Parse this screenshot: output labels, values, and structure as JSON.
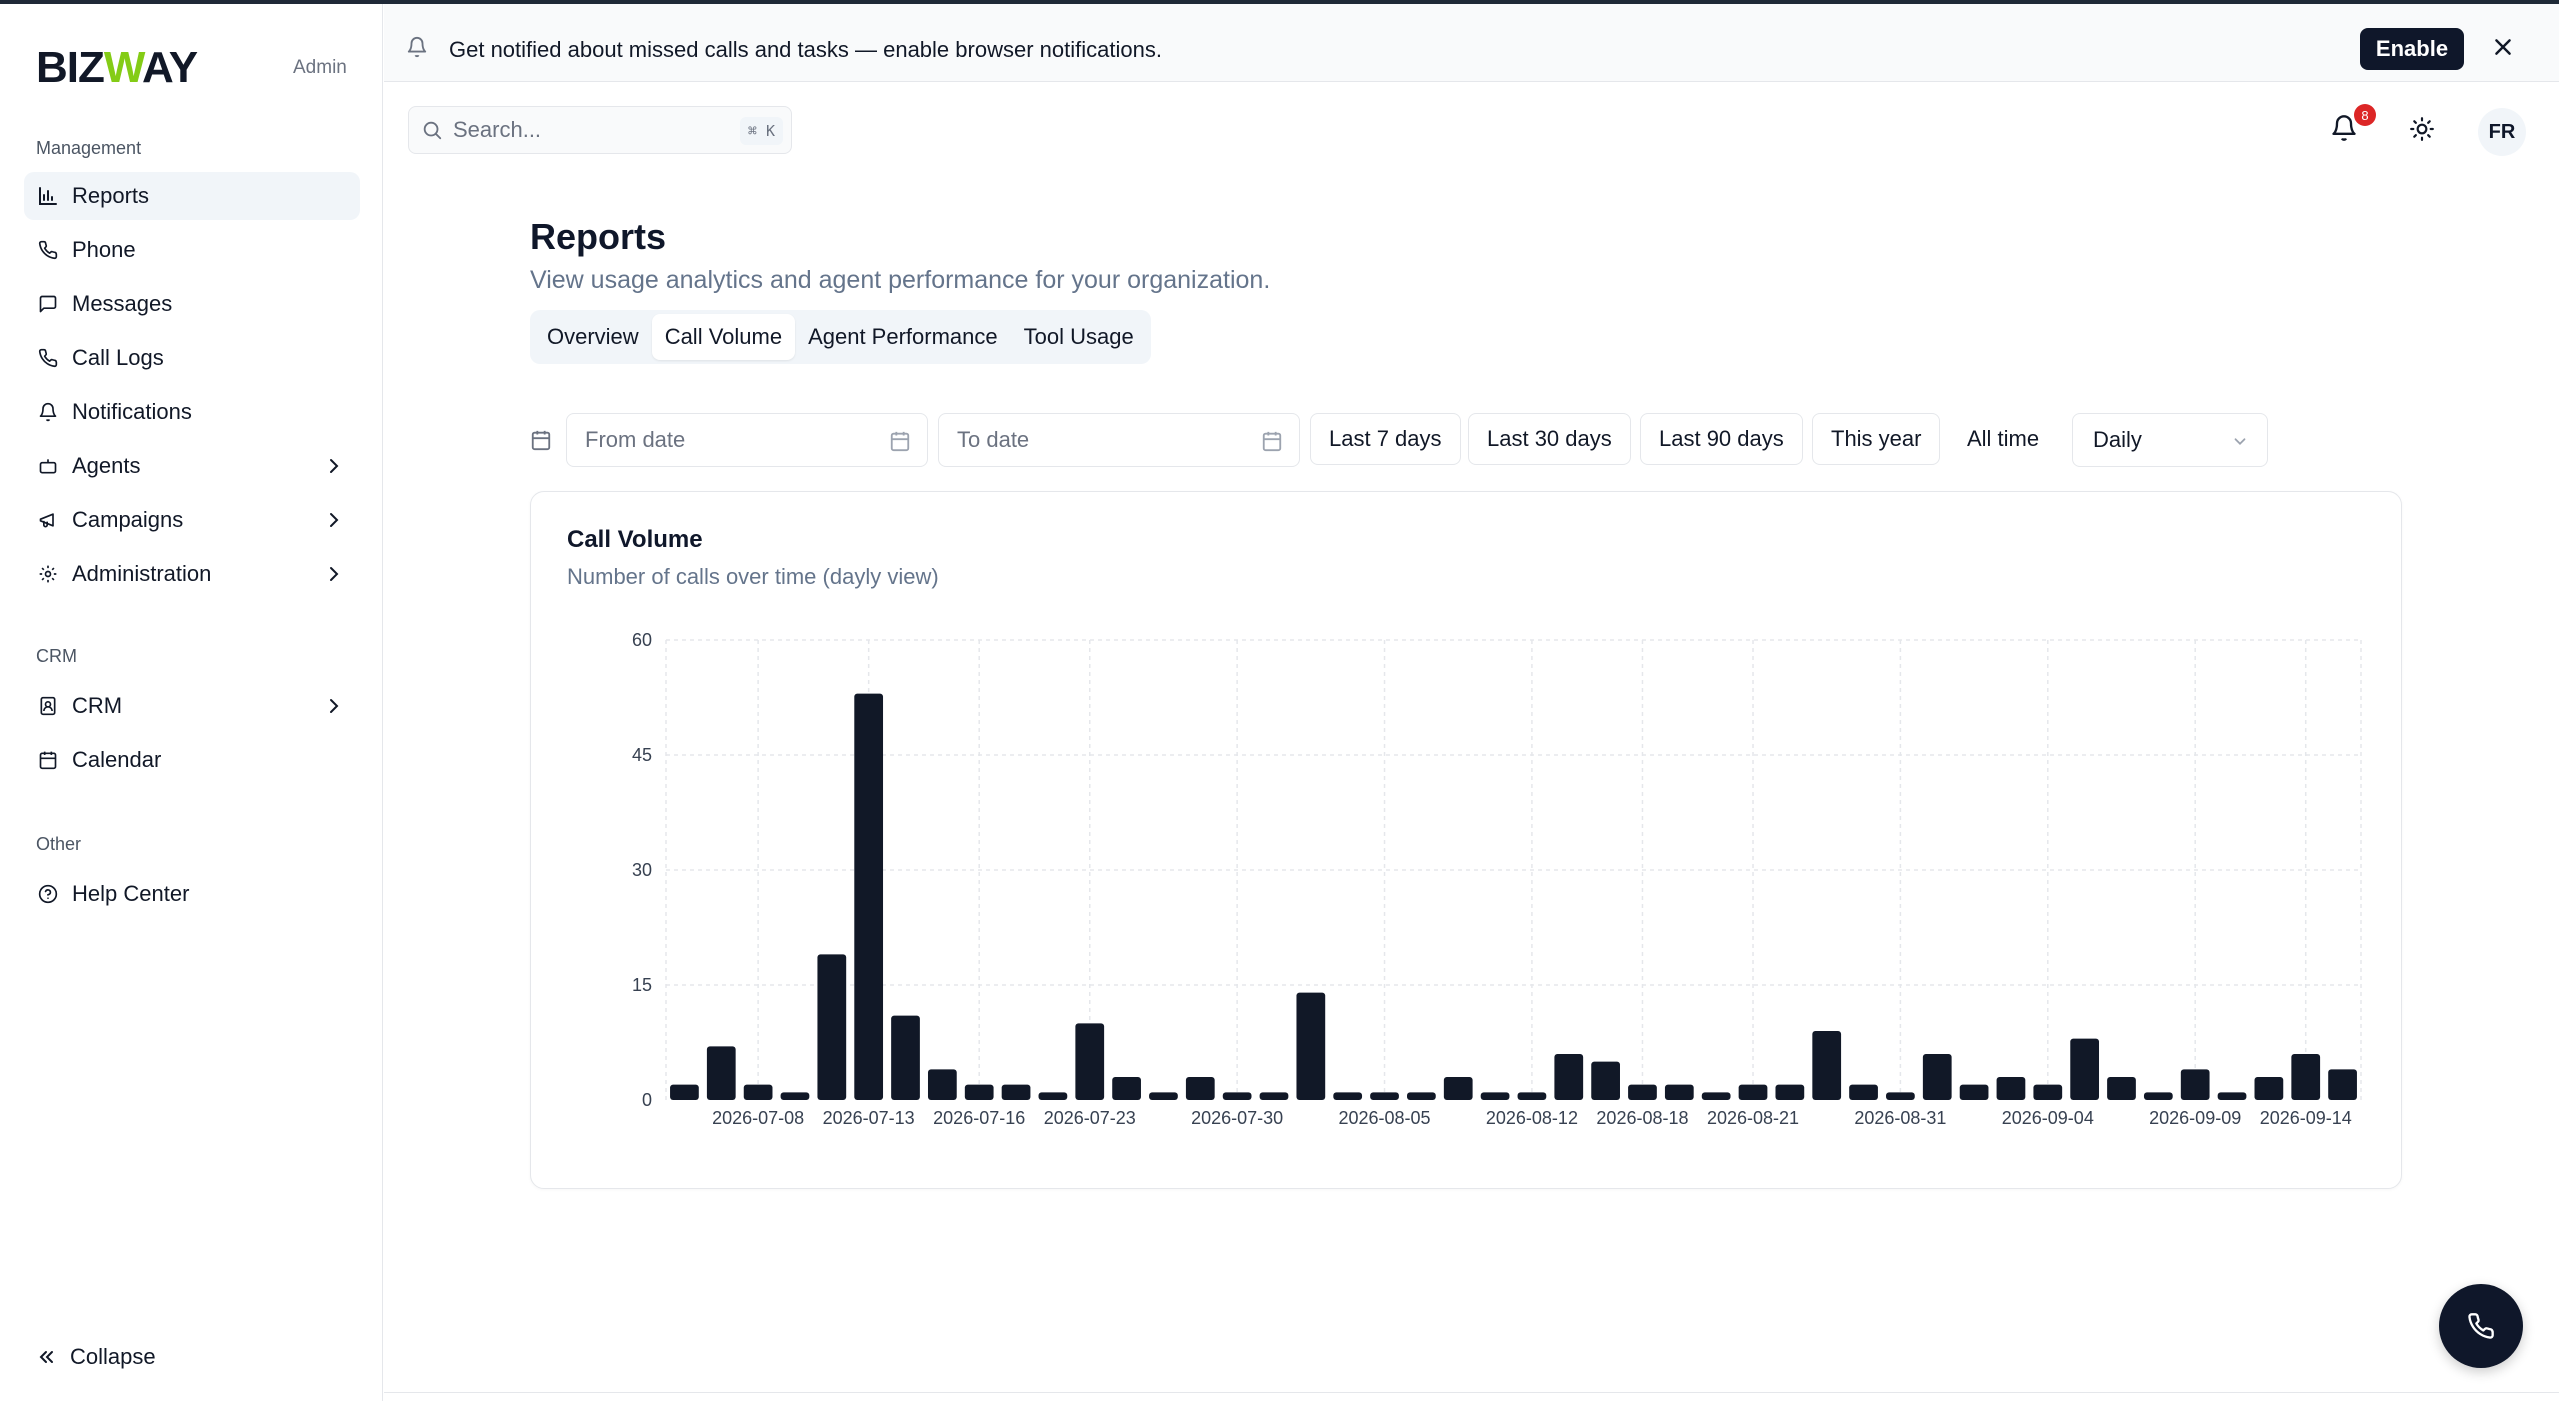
{
  "brand": {
    "logo_pre": "BIZ",
    "logo_w": "W",
    "logo_post": "AY",
    "role": "Admin"
  },
  "sidebar": {
    "sections": [
      {
        "label": "Management"
      },
      {
        "label": "CRM"
      },
      {
        "label": "Other"
      }
    ],
    "items": [
      {
        "label": "Reports",
        "icon": "bar-chart-icon",
        "active": true
      },
      {
        "label": "Phone",
        "icon": "phone-icon"
      },
      {
        "label": "Messages",
        "icon": "message-icon"
      },
      {
        "label": "Call Logs",
        "icon": "phone-icon"
      },
      {
        "label": "Notifications",
        "icon": "bell-icon"
      },
      {
        "label": "Agents",
        "icon": "bot-icon",
        "expandable": true
      },
      {
        "label": "Campaigns",
        "icon": "megaphone-icon",
        "expandable": true
      },
      {
        "label": "Administration",
        "icon": "gear-icon",
        "expandable": true
      },
      {
        "label": "CRM",
        "icon": "contact-book-icon",
        "expandable": true
      },
      {
        "label": "Calendar",
        "icon": "calendar-icon"
      },
      {
        "label": "Help Center",
        "icon": "help-circle-icon"
      }
    ],
    "collapse_label": "Collapse"
  },
  "banner": {
    "text": "Get notified about missed calls and tasks — enable browser notifications.",
    "enable_label": "Enable"
  },
  "search": {
    "placeholder": "Search...",
    "shortcut": "⌘ K"
  },
  "header": {
    "notification_count": "8",
    "avatar_initials": "FR"
  },
  "page": {
    "title": "Reports",
    "subtitle": "View usage analytics and agent performance for your organization."
  },
  "tabs": [
    {
      "label": "Overview"
    },
    {
      "label": "Call Volume",
      "active": true
    },
    {
      "label": "Agent Performance"
    },
    {
      "label": "Tool Usage"
    }
  ],
  "filters": {
    "from_placeholder": "From date",
    "to_placeholder": "To date",
    "ranges": [
      "Last 7 days",
      "Last 30 days",
      "Last 90 days",
      "This year",
      "All time"
    ],
    "granularity": "Daily"
  },
  "card": {
    "title": "Call Volume",
    "subtitle": "Number of calls over time (dayly view)"
  },
  "colors": {
    "bar": "#111827",
    "grid": "#e5e7eb",
    "accent_green": "#84cc16",
    "badge_red": "#dc2626"
  },
  "chart_data": {
    "type": "bar",
    "ylim": [
      0,
      60
    ],
    "yticks": [
      0,
      15,
      30,
      45,
      60
    ],
    "grid": true,
    "values": [
      2,
      7,
      2,
      1,
      19,
      53,
      11,
      4,
      2,
      2,
      1,
      10,
      3,
      1,
      3,
      1,
      1,
      14,
      1,
      1,
      1,
      3,
      1,
      1,
      6,
      5,
      2,
      2,
      1,
      2,
      2,
      9,
      2,
      1,
      6,
      2,
      3,
      2,
      8,
      3,
      1,
      4,
      1,
      3,
      6,
      4
    ],
    "x_tick_labels": [
      {
        "index": 2,
        "label": "2026-07-08"
      },
      {
        "index": 5,
        "label": "2026-07-13"
      },
      {
        "index": 8,
        "label": "2026-07-16"
      },
      {
        "index": 11,
        "label": "2026-07-23"
      },
      {
        "index": 15,
        "label": "2026-07-30"
      },
      {
        "index": 19,
        "label": "2026-08-05"
      },
      {
        "index": 23,
        "label": "2026-08-12"
      },
      {
        "index": 26,
        "label": "2026-08-18"
      },
      {
        "index": 29,
        "label": "2026-08-21"
      },
      {
        "index": 33,
        "label": "2026-08-31"
      },
      {
        "index": 37,
        "label": "2026-09-04"
      },
      {
        "index": 41,
        "label": "2026-09-09"
      },
      {
        "index": 44,
        "label": "2026-09-14"
      }
    ]
  }
}
